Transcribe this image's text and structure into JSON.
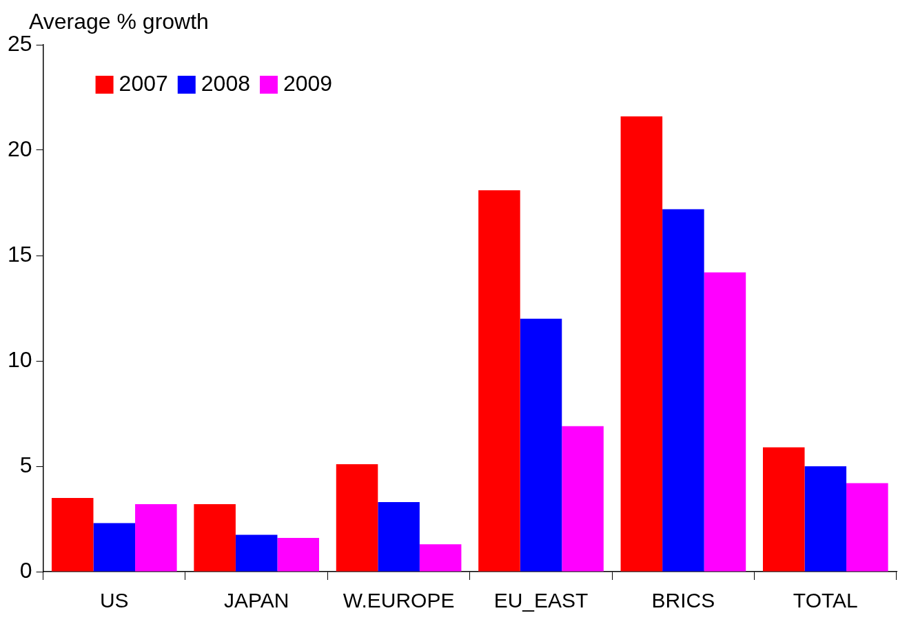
{
  "chart_data": {
    "type": "bar",
    "ylabel": "Average % growth",
    "categories": [
      "US",
      "JAPAN",
      "W.EUROPE",
      "EU_EAST",
      "BRICS",
      "TOTAL"
    ],
    "series": [
      {
        "name": "2007",
        "color": "#ff0000",
        "values": [
          3.5,
          3.2,
          5.1,
          18.1,
          21.6,
          5.9
        ]
      },
      {
        "name": "2008",
        "color": "#0000ff",
        "values": [
          2.3,
          1.75,
          3.3,
          12.0,
          17.2,
          5.0
        ]
      },
      {
        "name": "2009",
        "color": "#ff00ff",
        "values": [
          3.2,
          1.6,
          1.3,
          6.9,
          14.2,
          4.2
        ]
      }
    ],
    "ylim": [
      0,
      25
    ],
    "yticks": [
      0,
      5,
      10,
      15,
      20,
      25
    ],
    "grid": false,
    "legend": "top left"
  }
}
